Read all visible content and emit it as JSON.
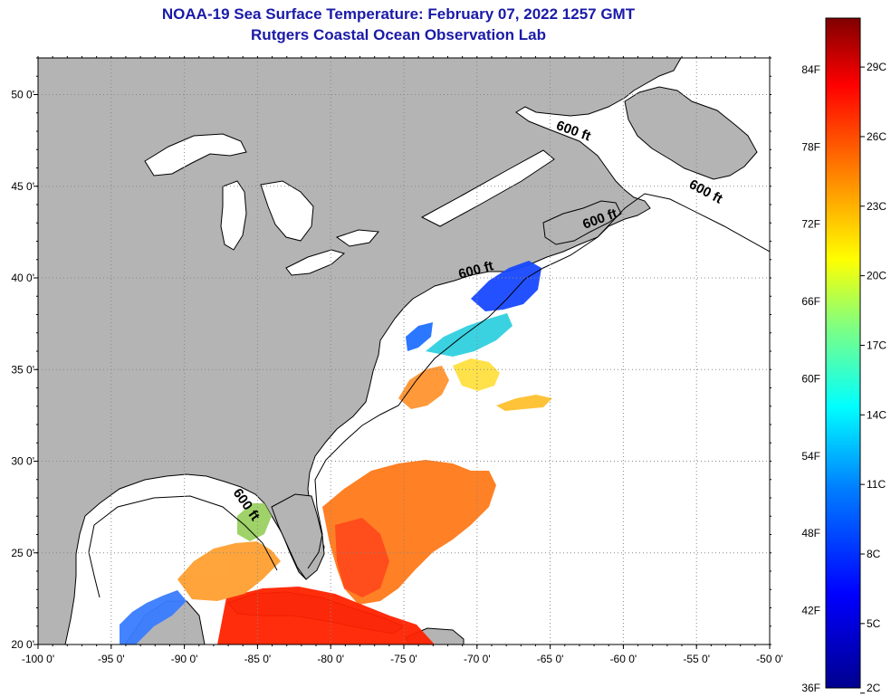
{
  "title": {
    "line1": "NOAA-19 Sea Surface Temperature:  February 07, 2022 1257 GMT",
    "line2": "Rutgers Coastal Ocean Observation Lab"
  },
  "map": {
    "lon_range": [
      -100,
      -50
    ],
    "lat_range": [
      20,
      52
    ],
    "lon_ticks": [
      "-100 0'",
      "-95 0'",
      "-90 0'",
      "-85 0'",
      "-80 0'",
      "-75 0'",
      "-70 0'",
      "-65 0'",
      "-60 0'",
      "-55 0'",
      "-50 0'"
    ],
    "lat_ticks": [
      "20 0'",
      "25 0'",
      "30 0'",
      "35 0'",
      "40 0'",
      "45 0'",
      "50 0'"
    ],
    "land_color": "#b4b4b4",
    "water_color": "#ffffff",
    "grid": true,
    "isobath_label": "600 ft",
    "isobath_labels": [
      {
        "text": "600 ft",
        "lon": -63.5,
        "lat": 47.8,
        "angle": 20
      },
      {
        "text": "600 ft",
        "lon": -54.5,
        "lat": 44.5,
        "angle": 28
      },
      {
        "text": "600 ft",
        "lon": -61.5,
        "lat": 43.0,
        "angle": -20
      },
      {
        "text": "600 ft",
        "lon": -70.0,
        "lat": 40.2,
        "angle": -15
      },
      {
        "text": "600 ft",
        "lon": -86.0,
        "lat": 27.5,
        "angle": 55
      }
    ]
  },
  "colorbar": {
    "min_f": 36,
    "max_f": 88,
    "fahrenheit_labels": [
      "84F",
      "78F",
      "72F",
      "66F",
      "60F",
      "54F",
      "48F",
      "42F",
      "36F"
    ],
    "celsius_labels": [
      "29C",
      "26C",
      "23C",
      "20C",
      "17C",
      "14C",
      "11C",
      "8C",
      "5C",
      "2C"
    ],
    "colors": [
      "#00008f",
      "#0000ff",
      "#0080ff",
      "#00ffff",
      "#80ff80",
      "#ffff00",
      "#ff8000",
      "#ff0000",
      "#800000"
    ]
  }
}
